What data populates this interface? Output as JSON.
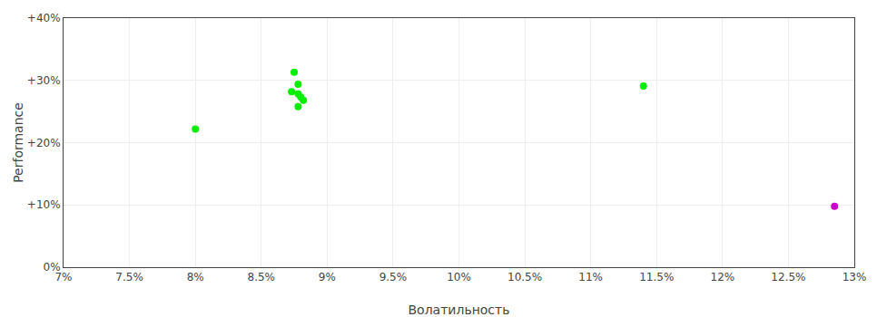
{
  "chart_data": {
    "type": "scatter",
    "xlabel": "Волатильность",
    "ylabel": "Performance",
    "xlim": [
      0.07,
      0.13
    ],
    "ylim": [
      0.0,
      0.4
    ],
    "xticks": [
      {
        "value": 0.07,
        "label": "7%"
      },
      {
        "value": 0.075,
        "label": "7.5%"
      },
      {
        "value": 0.08,
        "label": "8%"
      },
      {
        "value": 0.085,
        "label": "8.5%"
      },
      {
        "value": 0.09,
        "label": "9%"
      },
      {
        "value": 0.095,
        "label": "9.5%"
      },
      {
        "value": 0.1,
        "label": "10%"
      },
      {
        "value": 0.105,
        "label": "10.5%"
      },
      {
        "value": 0.11,
        "label": "11%"
      },
      {
        "value": 0.115,
        "label": "11.5%"
      },
      {
        "value": 0.12,
        "label": "12%"
      },
      {
        "value": 0.125,
        "label": "12.5%"
      },
      {
        "value": 0.13,
        "label": "13%"
      }
    ],
    "yticks": [
      {
        "value": 0.0,
        "label": "0%"
      },
      {
        "value": 0.1,
        "label": "+10%"
      },
      {
        "value": 0.2,
        "label": "+20%"
      },
      {
        "value": 0.3,
        "label": "+30%"
      },
      {
        "value": 0.4,
        "label": "+40%"
      }
    ],
    "grid": true,
    "marker": "circle",
    "series": [
      {
        "color": "#00ee00",
        "x": [
          0.0875,
          0.0878,
          0.0873,
          0.0878,
          0.088,
          0.0882,
          0.0878,
          0.08,
          0.114
        ],
        "values": [
          0.313,
          0.294,
          0.282,
          0.278,
          0.273,
          0.268,
          0.258,
          0.222,
          0.291
        ]
      },
      {
        "color": "#cc00cc",
        "x": [
          0.1285
        ],
        "values": [
          0.098
        ]
      }
    ]
  }
}
